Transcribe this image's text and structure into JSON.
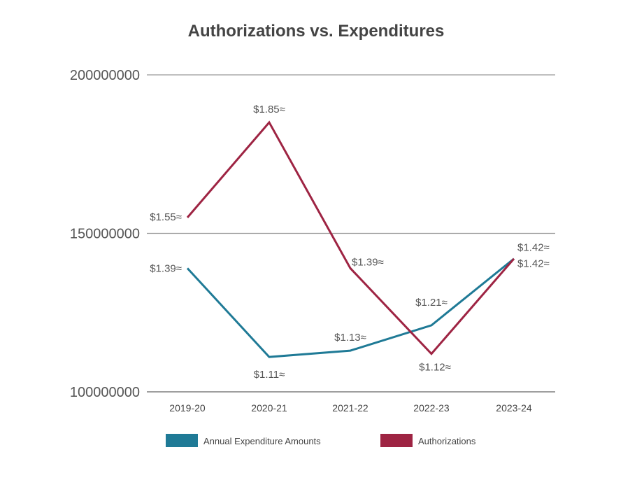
{
  "chart_data": {
    "type": "line",
    "title": "Authorizations vs. Expenditures",
    "xlabel": "",
    "ylabel": "",
    "categories": [
      "2019-20",
      "2020-21",
      "2021-22",
      "2022-23",
      "2023-24"
    ],
    "ylim": [
      100000000,
      200000000
    ],
    "yticks": [
      "100000000",
      "150000000",
      "200000000"
    ],
    "grid": true,
    "legend_position": "bottom",
    "series": [
      {
        "name": "Annual Expenditure Amounts",
        "color": "#1f7a96",
        "values": [
          139000000,
          111000000,
          113000000,
          121000000,
          142000000
        ],
        "labels": [
          "$1.39≈",
          "$1.11≈",
          "$1.13≈",
          "$1.21≈",
          "$1.42≈"
        ]
      },
      {
        "name": "Authorizations",
        "color": "#9e2443",
        "values": [
          155000000,
          185000000,
          139000000,
          112000000,
          142000000
        ],
        "labels": [
          "$1.55≈",
          "$1.85≈",
          "$1.39≈",
          "$1.12≈",
          "$1.42≈"
        ]
      }
    ]
  }
}
